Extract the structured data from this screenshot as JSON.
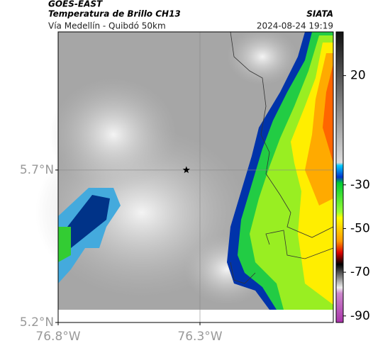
{
  "header": {
    "source": "GOES-EAST",
    "title": "Temperatura de Brillo CH13",
    "subtitle": "Vía Medellín - Quibdó 50km",
    "org": "SIATA",
    "datetime": "2024-08-24 19:19"
  },
  "map": {
    "xlim": [
      -76.8,
      -75.83
    ],
    "ylim": [
      5.2,
      6.153
    ],
    "xticks": [
      {
        "value": -76.8,
        "label": "76.8°W"
      },
      {
        "value": -76.3,
        "label": "76.3°W"
      }
    ],
    "yticks": [
      {
        "value": 5.2,
        "label": "5.2°N"
      },
      {
        "value": 5.7,
        "label": "5.7°N"
      }
    ],
    "grid": true,
    "marker": {
      "lon": -76.348,
      "lat": 5.7
    }
  },
  "colorbar": {
    "range": [
      40,
      -93
    ],
    "ticks": [
      20,
      -30,
      -50,
      -70,
      -90
    ]
  }
}
